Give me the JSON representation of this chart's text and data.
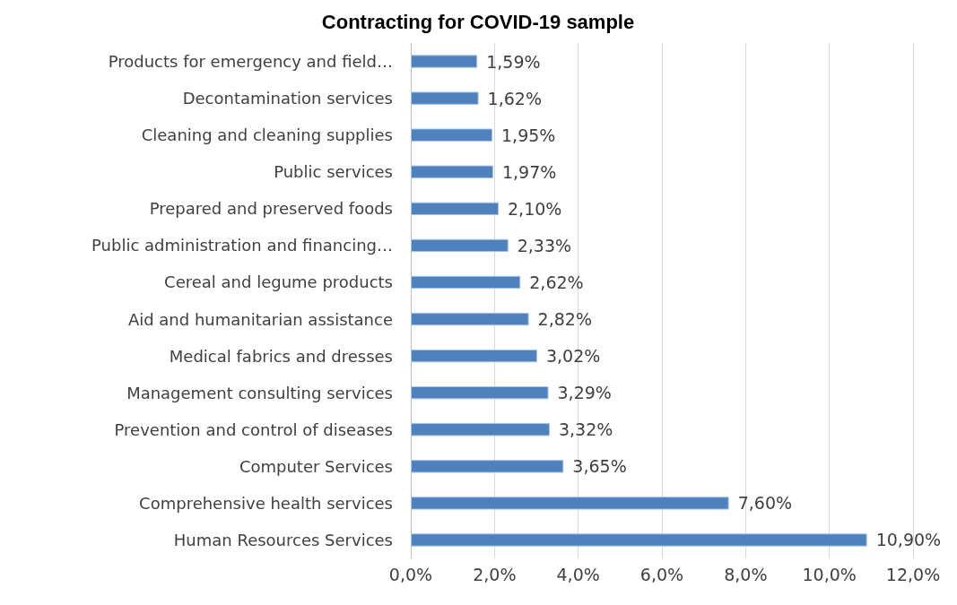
{
  "chart_data": {
    "type": "bar",
    "orientation": "horizontal",
    "title": "Contracting for COVID-19 sample",
    "categories": [
      "Products for emergency and field…",
      "Decontamination services",
      "Cleaning and cleaning supplies",
      "Public services",
      "Prepared and preserved foods",
      "Public administration and financing…",
      "Cereal and legume products",
      "Aid and humanitarian assistance",
      "Medical fabrics and dresses",
      "Management consulting services",
      "Prevention and control of diseases",
      "Computer Services",
      "Comprehensive health services",
      "Human Resources Services"
    ],
    "values": [
      1.59,
      1.62,
      1.95,
      1.97,
      2.1,
      2.33,
      2.62,
      2.82,
      3.02,
      3.29,
      3.32,
      3.65,
      7.6,
      10.9
    ],
    "value_labels": [
      "1,59%",
      "1,62%",
      "1,95%",
      "1,97%",
      "2,10%",
      "2,33%",
      "2,62%",
      "2,82%",
      "3,02%",
      "3,29%",
      "3,32%",
      "3,65%",
      "7,60%",
      "10,90%"
    ],
    "color": "#4f81bd",
    "xlim": [
      0,
      12
    ],
    "xticks": [
      {
        "value": 0,
        "label": "0,0%"
      },
      {
        "value": 2,
        "label": "2,0%"
      },
      {
        "value": 4,
        "label": "4,0%"
      },
      {
        "value": 6,
        "label": "6,0%"
      },
      {
        "value": 8,
        "label": "8,0%"
      },
      {
        "value": 10,
        "label": "10,0%"
      },
      {
        "value": 12,
        "label": "12,0%"
      }
    ],
    "grid": "x"
  }
}
